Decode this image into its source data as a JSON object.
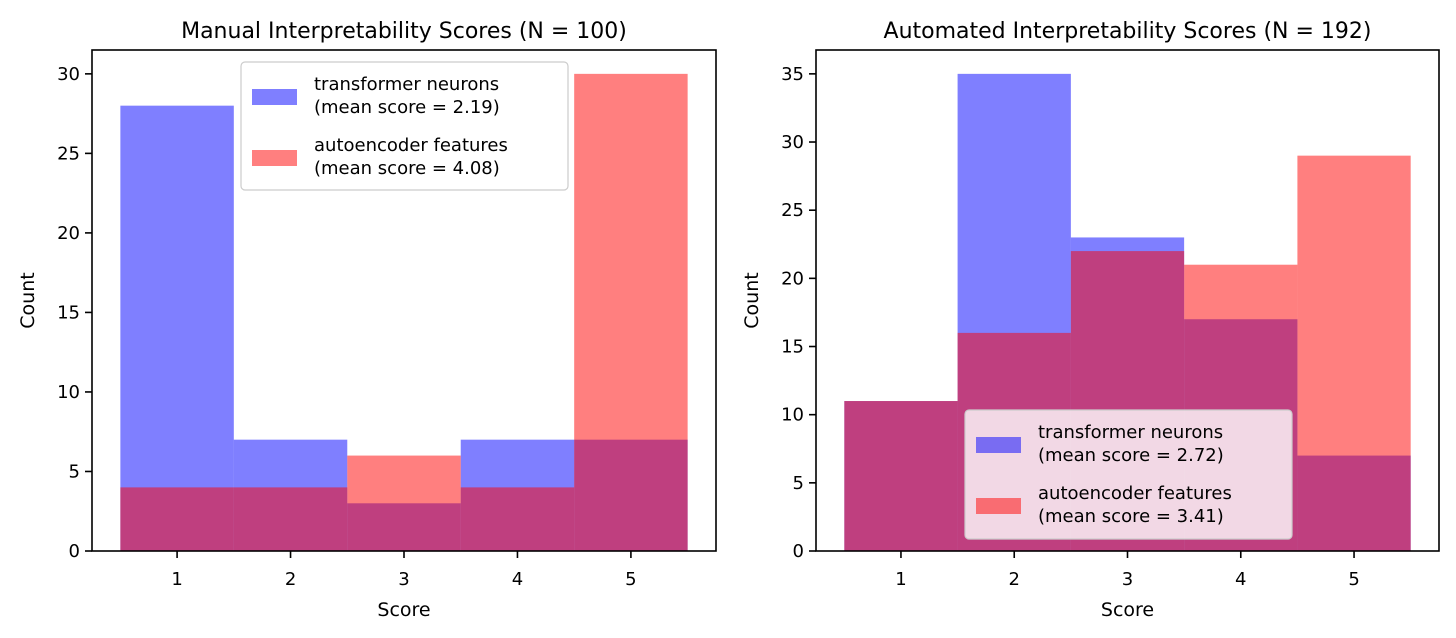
{
  "chart_data": [
    {
      "type": "bar",
      "title": "Manual Interpretability Scores (N = 100)",
      "xlabel": "Score",
      "ylabel": "Count",
      "categories": [
        1,
        2,
        3,
        4,
        5
      ],
      "xlim": [
        0.25,
        5.75
      ],
      "ylim": [
        0,
        31.5
      ],
      "yticks": [
        0,
        5,
        10,
        15,
        20,
        25,
        30
      ],
      "grid": false,
      "legend_position": "top-center",
      "series": [
        {
          "name": "transformer neurons",
          "mean_label": "(mean score = 2.19)",
          "color": "#0000ff",
          "values": [
            28,
            7,
            3,
            7,
            7
          ]
        },
        {
          "name": "autoencoder features",
          "mean_label": "(mean score = 4.08)",
          "color": "#ff0000",
          "values": [
            4,
            4,
            6,
            4,
            30
          ]
        }
      ]
    },
    {
      "type": "bar",
      "title": "Automated Interpretability Scores (N = 192)",
      "xlabel": "Score",
      "ylabel": "Count",
      "categories": [
        1,
        2,
        3,
        4,
        5
      ],
      "xlim": [
        0.25,
        5.75
      ],
      "ylim": [
        0,
        36.75
      ],
      "yticks": [
        0,
        5,
        10,
        15,
        20,
        25,
        30,
        35
      ],
      "grid": false,
      "legend_position": "lower-center",
      "series": [
        {
          "name": "transformer neurons",
          "mean_label": "(mean score = 2.72)",
          "color": "#0000ff",
          "values": [
            11,
            35,
            23,
            17,
            7
          ]
        },
        {
          "name": "autoencoder features",
          "mean_label": "(mean score = 3.41)",
          "color": "#ff0000",
          "values": [
            11,
            16,
            22,
            21,
            29
          ]
        }
      ]
    }
  ]
}
